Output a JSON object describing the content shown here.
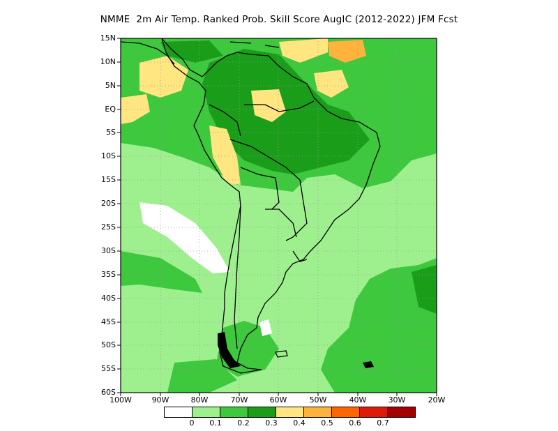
{
  "title": "NMME  2m Air Temp. Ranked Prob. Skill Score AugIC (2012-2022) JFM Fcst",
  "axes": {
    "lat_labels": [
      "15N",
      "10N",
      "5N",
      "EQ",
      "5S",
      "10S",
      "15S",
      "20S",
      "25S",
      "30S",
      "35S",
      "40S",
      "45S",
      "50S",
      "55S",
      "60S"
    ],
    "lon_labels": [
      "100W",
      "90W",
      "80W",
      "70W",
      "60W",
      "50W",
      "40W",
      "30W",
      "20W"
    ],
    "lat_range": [
      -60,
      15
    ],
    "lon_range": [
      -100,
      -20
    ],
    "grid": "dotted"
  },
  "colorbar": {
    "colors": [
      "#ffffff",
      "#9ef08e",
      "#3dc83d",
      "#1a9e1a",
      "#ffe680",
      "#ffb23c",
      "#ff6600",
      "#e01a0a",
      "#a50000"
    ],
    "tick_labels": [
      "0",
      "0.1",
      "0.2",
      "0.3",
      "0.4",
      "0.5",
      "0.6",
      "0.7"
    ]
  }
}
